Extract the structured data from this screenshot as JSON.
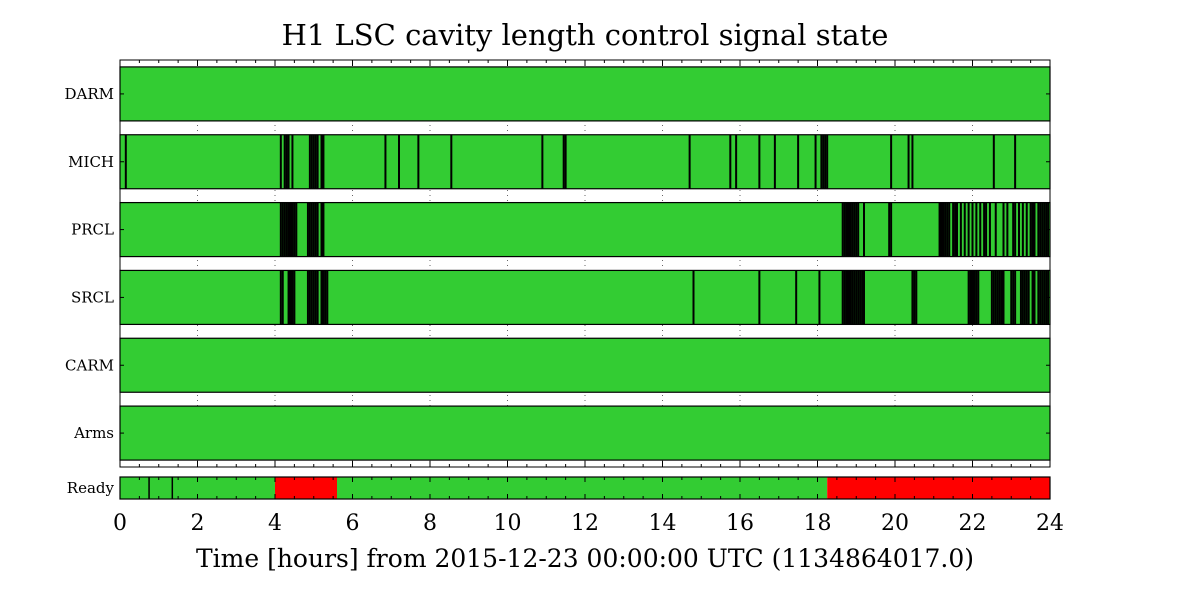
{
  "chart_data": {
    "type": "state-timeline",
    "title": "H1 LSC cavity length control signal state",
    "xlabel": "Time [hours] from 2015-12-23 00:00:00 UTC (1134864017.0)",
    "xlim": [
      0,
      24
    ],
    "xticks": [
      "0",
      "2",
      "4",
      "6",
      "8",
      "10",
      "12",
      "14",
      "16",
      "18",
      "20",
      "22",
      "24"
    ],
    "grid": true,
    "colors": {
      "on": "#33cc33",
      "off": "#ff0000",
      "edge": "#000000"
    },
    "channels": [
      {
        "name": "DARM",
        "state": "on",
        "transitions_hours": []
      },
      {
        "name": "MICH",
        "state": "on",
        "transitions_hours": [
          0.15,
          4.15,
          4.25,
          4.3,
          4.35,
          4.45,
          4.9,
          4.95,
          5.0,
          5.05,
          5.1,
          5.2,
          5.25,
          6.85,
          7.2,
          7.7,
          8.55,
          10.9,
          11.45,
          11.5,
          14.7,
          15.75,
          15.9,
          16.5,
          16.9,
          17.5,
          17.95,
          18.1,
          18.15,
          18.2,
          18.25,
          19.9,
          20.35,
          20.45,
          22.55,
          23.1
        ]
      },
      {
        "name": "PRCL",
        "state": "on",
        "transitions_hours": [
          4.15,
          4.2,
          4.25,
          4.3,
          4.35,
          4.4,
          4.45,
          4.5,
          4.55,
          4.85,
          4.9,
          4.95,
          5.0,
          5.05,
          5.1,
          5.2,
          5.25,
          18.65,
          18.7,
          18.75,
          18.8,
          18.85,
          18.9,
          18.95,
          19.0,
          19.05,
          19.2,
          19.85,
          19.9,
          21.15,
          21.2,
          21.25,
          21.3,
          21.35,
          21.4,
          21.5,
          21.55,
          21.6,
          21.7,
          21.8,
          21.9,
          22.0,
          22.1,
          22.2,
          22.3,
          22.35,
          22.45,
          22.6,
          22.8,
          22.9,
          23.05,
          23.1,
          23.2,
          23.3,
          23.4,
          23.5,
          23.55,
          23.6,
          23.7,
          23.75,
          23.8,
          23.85,
          23.9,
          23.95
        ]
      },
      {
        "name": "SRCL",
        "state": "on",
        "transitions_hours": [
          4.15,
          4.2,
          4.35,
          4.4,
          4.45,
          4.5,
          4.85,
          4.9,
          4.95,
          5.0,
          5.05,
          5.1,
          5.2,
          5.25,
          5.3,
          5.35,
          14.8,
          16.5,
          17.45,
          18.05,
          18.65,
          18.7,
          18.75,
          18.8,
          18.85,
          18.9,
          18.95,
          19.0,
          19.05,
          19.1,
          19.15,
          19.2,
          20.45,
          20.5,
          20.55,
          21.9,
          21.95,
          22.0,
          22.05,
          22.1,
          22.15,
          22.5,
          22.55,
          22.6,
          22.65,
          22.7,
          22.75,
          22.8,
          23.0,
          23.05,
          23.1,
          23.25,
          23.3,
          23.35,
          23.4,
          23.45,
          23.55,
          23.6,
          23.7,
          23.75,
          23.8,
          23.85,
          23.9,
          23.95
        ]
      },
      {
        "name": "CARM",
        "state": "on",
        "transitions_hours": []
      },
      {
        "name": "Arms",
        "state": "on",
        "transitions_hours": []
      }
    ],
    "ready": {
      "name": "Ready",
      "segments": [
        {
          "start": 0,
          "end": 4.0,
          "state": "on"
        },
        {
          "start": 4.0,
          "end": 5.6,
          "state": "off"
        },
        {
          "start": 5.6,
          "end": 18.25,
          "state": "on"
        },
        {
          "start": 18.25,
          "end": 24,
          "state": "off"
        }
      ],
      "transitions_hours": [
        0.75,
        1.35
      ]
    }
  }
}
